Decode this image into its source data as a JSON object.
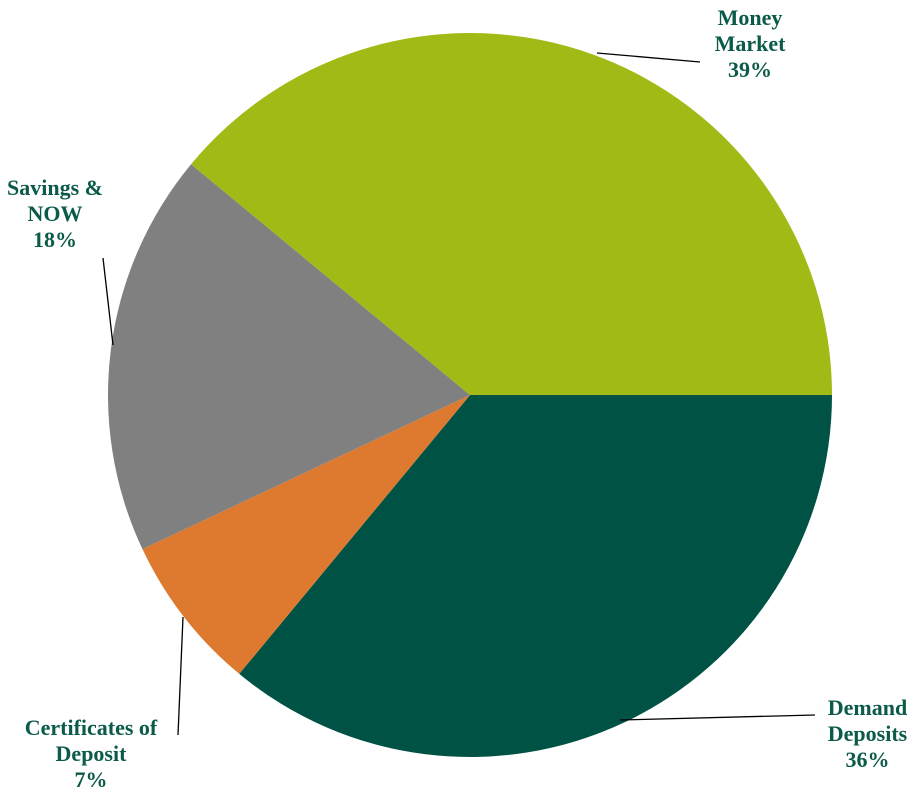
{
  "chart_data": {
    "type": "pie",
    "categories": [
      "Demand Deposits",
      "Certificates of Deposit",
      "Savings & NOW",
      "Money Market"
    ],
    "values": [
      36,
      7,
      18,
      39
    ],
    "value_labels": [
      "36%",
      "7%",
      "18%",
      "39%"
    ],
    "colors": [
      "#005244",
      "#dd7a30",
      "#808080",
      "#a2ba15"
    ]
  }
}
